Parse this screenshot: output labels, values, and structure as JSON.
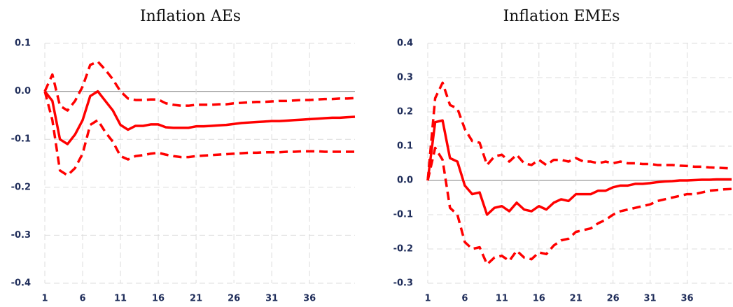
{
  "chart_data": [
    {
      "type": "line",
      "title": "Inflation AEs",
      "x": [
        1,
        2,
        3,
        4,
        5,
        6,
        7,
        8,
        9,
        10,
        11,
        12,
        13,
        14,
        15,
        16,
        17,
        18,
        19,
        20,
        21,
        22,
        23,
        24,
        25,
        26,
        27,
        28,
        29,
        30,
        31,
        32,
        33,
        34,
        35,
        36,
        37,
        38,
        39,
        40,
        41,
        42
      ],
      "xlim": [
        1,
        42
      ],
      "xticks": [
        1,
        6,
        11,
        16,
        21,
        26,
        31,
        36
      ],
      "ylim": [
        -0.4,
        0.1
      ],
      "yticks": [
        0.1,
        {
          "value": 0,
          "label": "0.0"
        },
        -0.1,
        -0.2,
        -0.3,
        -0.4
      ],
      "grid": true,
      "series": [
        {
          "color": "#ff0000",
          "dashed": false,
          "values": [
            0,
            -0.02,
            -0.1,
            -0.11,
            -0.09,
            -0.06,
            -0.01,
            0,
            -0.02,
            -0.04,
            -0.07,
            -0.08,
            -0.072,
            -0.072,
            -0.069,
            -0.069,
            -0.075,
            -0.076,
            -0.076,
            -0.076,
            -0.073,
            -0.073,
            -0.072,
            -0.071,
            -0.07,
            -0.068,
            -0.066,
            -0.065,
            -0.064,
            -0.063,
            -0.062,
            -0.062,
            -0.061,
            -0.06,
            -0.059,
            -0.058,
            -0.057,
            -0.056,
            -0.055,
            -0.055,
            -0.054,
            -0.053
          ]
        },
        {
          "color": "#ff0000",
          "dashed": true,
          "values": [
            0,
            0.035,
            -0.03,
            -0.04,
            -0.02,
            0.01,
            0.055,
            0.062,
            0.045,
            0.025,
            0,
            -0.015,
            -0.018,
            -0.018,
            -0.017,
            -0.017,
            -0.025,
            -0.028,
            -0.03,
            -0.03,
            -0.028,
            -0.028,
            -0.028,
            -0.027,
            -0.027,
            -0.025,
            -0.024,
            -0.023,
            -0.022,
            -0.022,
            -0.021,
            -0.02,
            -0.02,
            -0.019,
            -0.018,
            -0.018,
            -0.017,
            -0.016,
            -0.016,
            -0.015,
            -0.015,
            -0.014
          ]
        },
        {
          "color": "#ff0000",
          "dashed": true,
          "values": [
            0,
            -0.06,
            -0.165,
            -0.175,
            -0.16,
            -0.13,
            -0.07,
            -0.06,
            -0.085,
            -0.105,
            -0.135,
            -0.142,
            -0.135,
            -0.133,
            -0.13,
            -0.128,
            -0.132,
            -0.135,
            -0.137,
            -0.137,
            -0.135,
            -0.134,
            -0.133,
            -0.132,
            -0.131,
            -0.13,
            -0.129,
            -0.128,
            -0.128,
            -0.127,
            -0.127,
            -0.127,
            -0.126,
            -0.126,
            -0.125,
            -0.125,
            -0.125,
            -0.126,
            -0.126,
            -0.126,
            -0.126,
            -0.126
          ]
        }
      ]
    },
    {
      "type": "line",
      "title": "Inflation EMEs",
      "x": [
        1,
        2,
        3,
        4,
        5,
        6,
        7,
        8,
        9,
        10,
        11,
        12,
        13,
        14,
        15,
        16,
        17,
        18,
        19,
        20,
        21,
        22,
        23,
        24,
        25,
        26,
        27,
        28,
        29,
        30,
        31,
        32,
        33,
        34,
        35,
        36,
        37,
        38,
        39,
        40,
        41,
        42
      ],
      "xlim": [
        1,
        42
      ],
      "xticks": [
        1,
        6,
        11,
        16,
        21,
        26,
        31,
        36
      ],
      "ylim": [
        -0.3,
        0.4
      ],
      "yticks": [
        0.4,
        0.3,
        0.2,
        0.1,
        {
          "value": 0,
          "label": "0.0"
        },
        -0.1,
        -0.2,
        -0.3
      ],
      "grid": true,
      "series": [
        {
          "color": "#ff0000",
          "dashed": false,
          "values": [
            0,
            0.17,
            0.175,
            0.065,
            0.055,
            -0.015,
            -0.04,
            -0.035,
            -0.1,
            -0.08,
            -0.075,
            -0.09,
            -0.065,
            -0.085,
            -0.09,
            -0.075,
            -0.085,
            -0.065,
            -0.055,
            -0.06,
            -0.04,
            -0.04,
            -0.04,
            -0.03,
            -0.03,
            -0.02,
            -0.015,
            -0.015,
            -0.01,
            -0.01,
            -0.008,
            -0.005,
            -0.003,
            -0.002,
            0,
            0,
            0.001,
            0.002,
            0.002,
            0.003,
            0.003,
            0.003
          ]
        },
        {
          "color": "#ff0000",
          "dashed": true,
          "values": [
            0,
            0.24,
            0.285,
            0.22,
            0.21,
            0.15,
            0.115,
            0.11,
            0.045,
            0.07,
            0.075,
            0.055,
            0.075,
            0.05,
            0.045,
            0.06,
            0.045,
            0.06,
            0.06,
            0.055,
            0.065,
            0.055,
            0.055,
            0.05,
            0.055,
            0.05,
            0.055,
            0.05,
            0.05,
            0.048,
            0.048,
            0.045,
            0.045,
            0.045,
            0.043,
            0.042,
            0.04,
            0.04,
            0.038,
            0.037,
            0.036,
            0.035
          ]
        },
        {
          "color": "#ff0000",
          "dashed": true,
          "values": [
            0,
            0.095,
            0.06,
            -0.08,
            -0.1,
            -0.18,
            -0.2,
            -0.195,
            -0.245,
            -0.225,
            -0.22,
            -0.235,
            -0.205,
            -0.225,
            -0.23,
            -0.21,
            -0.215,
            -0.19,
            -0.175,
            -0.17,
            -0.15,
            -0.145,
            -0.14,
            -0.125,
            -0.115,
            -0.1,
            -0.09,
            -0.085,
            -0.08,
            -0.075,
            -0.07,
            -0.06,
            -0.055,
            -0.05,
            -0.045,
            -0.04,
            -0.04,
            -0.035,
            -0.03,
            -0.028,
            -0.026,
            -0.025
          ]
        }
      ]
    }
  ]
}
